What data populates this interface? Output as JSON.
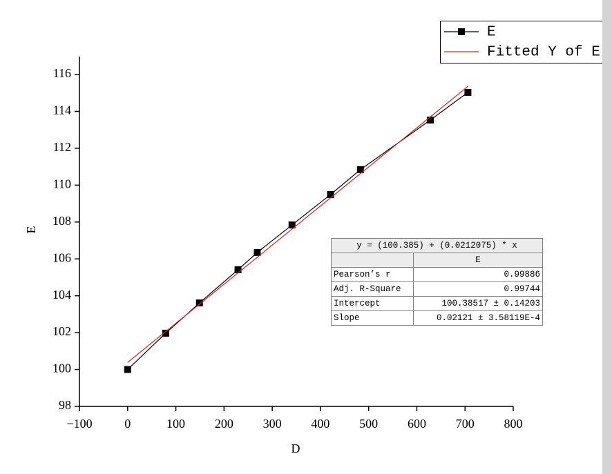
{
  "chart_data": {
    "type": "line",
    "x_label": "D",
    "y_label": "E",
    "xlim": [
      -100,
      800
    ],
    "ylim": [
      98,
      116
    ],
    "xticks": [
      {
        "value": -100,
        "label": "−100"
      },
      0,
      100,
      200,
      300,
      400,
      500,
      600,
      700,
      800
    ],
    "yticks": [
      98,
      100,
      102,
      104,
      106,
      108,
      110,
      112,
      114,
      116
    ],
    "legend": "top-right",
    "series": [
      {
        "name": "E",
        "color": "#000000",
        "marker": "square",
        "x": [
          0,
          79,
          149,
          229,
          269,
          341,
          421,
          483,
          628,
          706
        ],
        "values": [
          100,
          101.97,
          103.61,
          105.41,
          106.35,
          107.84,
          109.49,
          110.84,
          113.53,
          115.03
        ]
      },
      {
        "name": "Fitted Y of E",
        "color": "#e0201b",
        "x": [
          0,
          706
        ],
        "values": [
          100.385,
          115.357
        ]
      }
    ],
    "fit_table": {
      "equation": "y = (100.385) + (0.0212075) * x",
      "column": "E",
      "rows": [
        [
          "Pearson’s r",
          "0.99886"
        ],
        [
          "Adj. R-Square",
          "0.99744"
        ],
        [
          "Intercept",
          "100.38517 ± 0.14203"
        ],
        [
          "Slope",
          "0.02121 ± 3.58119E-4"
        ]
      ]
    }
  }
}
